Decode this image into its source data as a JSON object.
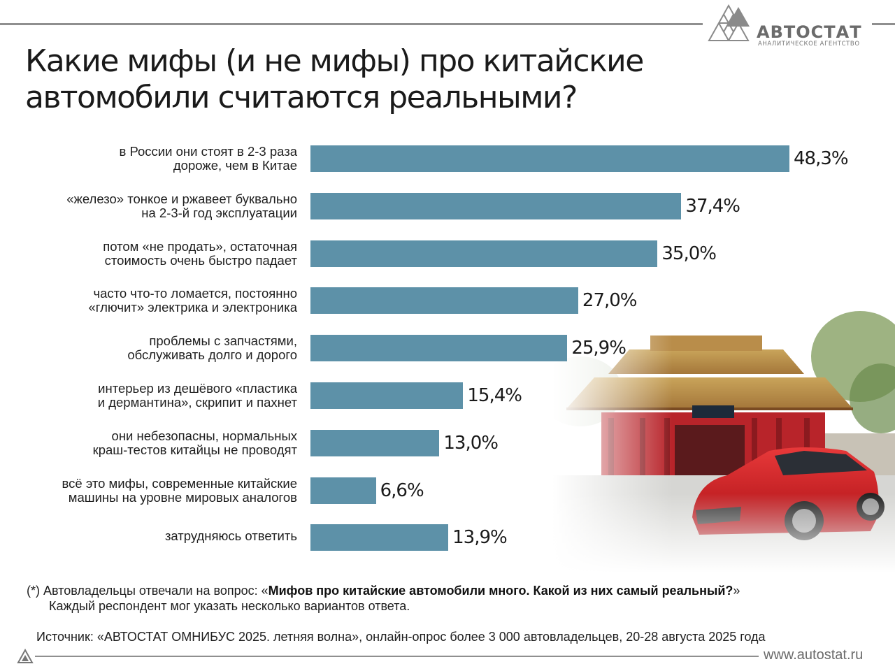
{
  "brand": {
    "name": "АВТОСТАТ",
    "subtitle": "АНАЛИТИЧЕСКОЕ АГЕНТСТВО",
    "website": "www.autostat.ru",
    "color": "#6b6b6b"
  },
  "chart_data": {
    "type": "bar",
    "orientation": "horizontal",
    "title": "Какие мифы (и не мифы) про китайские автомобили считаются реальными?",
    "categories": [
      "в России они стоят в 2-3 раза дороже, чем в Китае",
      "«железо» тонкое и ржавеет буквально на 2-3-й год эксплуатации",
      "потом «не продать», остаточная стоимость очень быстро падает",
      "часто что-то ломается, постоянно «глючит» электрика и электроника",
      "проблемы с запчастями, обслуживать долго и дорого",
      "интерьер из дешёвого «пластика и дермантина», скрипит и пахнет",
      "они небезопасны, нормальных краш-тестов китайцы не проводят",
      "всё это мифы, современные китайские машины на уровне мировых аналогов",
      "затрудняюсь ответить"
    ],
    "category_lines": [
      [
        "в России они стоят в 2-3 раза",
        "дороже, чем в Китае"
      ],
      [
        "«железо» тонкое и ржавеет буквально",
        "на 2-3-й год эксплуатации"
      ],
      [
        "потом «не продать», остаточная",
        "стоимость очень быстро падает"
      ],
      [
        "часто что-то ломается, постоянно",
        "«глючит» электрика и электроника"
      ],
      [
        "проблемы с запчастями,",
        "обслуживать долго и дорого"
      ],
      [
        "интерьер из дешёвого «пластика",
        "и дермантина», скрипит и пахнет"
      ],
      [
        "они небезопасны, нормальных",
        "краш-тестов китайцы не проводят"
      ],
      [
        "всё это мифы, современные китайские",
        "машины на уровне мировых аналогов"
      ],
      [
        "затрудняюсь ответить"
      ]
    ],
    "values": [
      48.3,
      37.4,
      35.0,
      27.0,
      25.9,
      15.4,
      13.0,
      6.6,
      13.9
    ],
    "value_labels": [
      "48,3%",
      "37,4%",
      "35,0%",
      "27,0%",
      "25,9%",
      "15,4%",
      "13,0%",
      "6,6%",
      "13,9%"
    ],
    "unit": "%",
    "bar_color": "#5d91a8",
    "grid": false,
    "legend": "none"
  },
  "footnote": {
    "prefix": "(*) Автовладельцы отвечали на вопрос: «",
    "question": "Мифов про китайские автомобили много. Какой из них самый реальный?",
    "suffix": "»",
    "line2": "Каждый респондент мог указать несколько вариантов ответа."
  },
  "source": "Источник: «АВТОСТАТ ОМНИБУС 2025. летняя волна», онлайн-опрос более 3 000 автовладельцев, 20-28 августа 2025 года"
}
